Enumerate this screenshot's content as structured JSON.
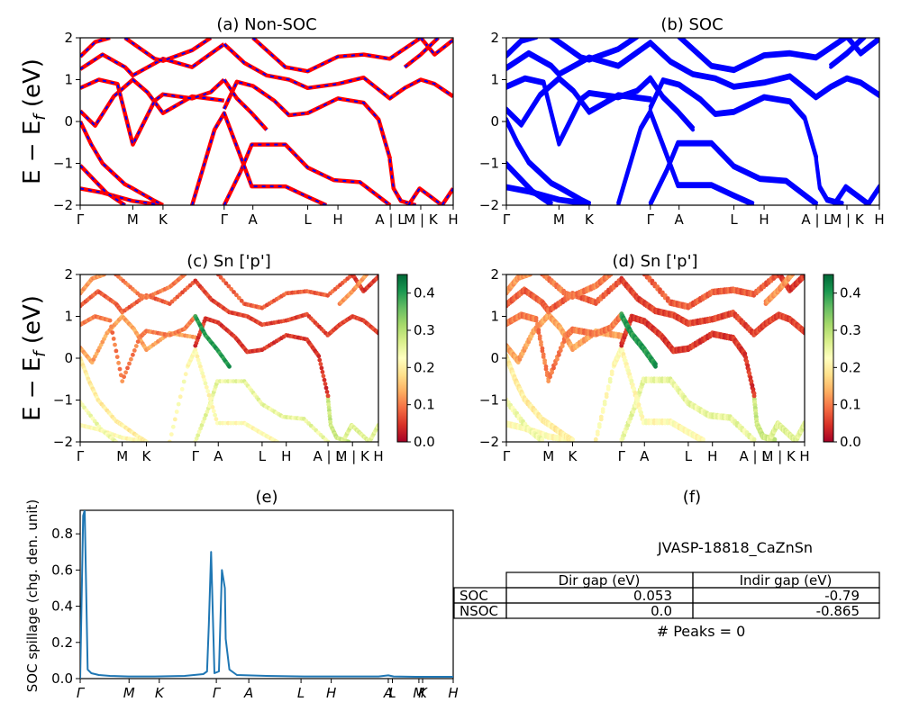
{
  "colors": {
    "nonsoc_line": "#ff0000",
    "nonsoc_dash": "#0000ff",
    "soc_line": "#0000ff",
    "spillage_line": "#1f77b4",
    "colormap": [
      "#a50026",
      "#d73027",
      "#f46d43",
      "#fdae61",
      "#fee08b",
      "#ffffbf",
      "#d9ef8b",
      "#a6d96a",
      "#66bd63",
      "#1a9850",
      "#006837"
    ]
  },
  "chart_data": [
    {
      "id": "a",
      "type": "line",
      "title": "(a) Non-SOC",
      "ylabel": "E − E_f (eV)",
      "ylim": [
        -2,
        2
      ],
      "yticks": [
        "2",
        "1",
        "0",
        "−1",
        "−2"
      ],
      "kpath": [
        "Γ",
        "M",
        "K",
        "Γ",
        "A",
        "L",
        "H",
        "A | L",
        "M | K",
        "H"
      ],
      "kpath_positions": [
        0,
        0.141,
        0.222,
        0.386,
        0.463,
        0.61,
        0.691,
        0.831,
        0.913,
        1
      ],
      "bands": [
        [
          [
            0,
            -1.6
          ],
          [
            0.06,
            -1.7
          ],
          [
            0.141,
            -1.9
          ],
          [
            0.222,
            -2.0
          ]
        ],
        [
          [
            0,
            -1.05
          ],
          [
            0.07,
            -1.7
          ],
          [
            0.12,
            -2.0
          ]
        ],
        [
          [
            0.386,
            -2.0
          ],
          [
            0.43,
            -1.2
          ],
          [
            0.46,
            -0.55
          ],
          [
            0.55,
            -0.55
          ],
          [
            0.61,
            -1.1
          ],
          [
            0.68,
            -1.4
          ],
          [
            0.75,
            -1.45
          ],
          [
            0.831,
            -2.0
          ]
        ],
        [
          [
            0.3,
            -2.0
          ],
          [
            0.36,
            -0.2
          ],
          [
            0.386,
            0.2
          ],
          [
            0.42,
            -0.6
          ],
          [
            0.46,
            -1.55
          ],
          [
            0.55,
            -1.55
          ],
          [
            0.61,
            -1.8
          ],
          [
            0.66,
            -2.0
          ]
        ],
        [
          [
            0.83,
            -0.9
          ],
          [
            0.84,
            -1.6
          ],
          [
            0.86,
            -1.9
          ],
          [
            0.9,
            -2.0
          ]
        ],
        [
          [
            0.88,
            -2.0
          ],
          [
            0.91,
            -1.6
          ],
          [
            0.94,
            -1.8
          ],
          [
            0.97,
            -2.0
          ],
          [
            1,
            -1.6
          ]
        ],
        [
          [
            0,
            0.25
          ],
          [
            0.04,
            -0.1
          ],
          [
            0.09,
            0.6
          ],
          [
            0.141,
            1.0
          ],
          [
            0.18,
            0.7
          ],
          [
            0.222,
            0.2
          ],
          [
            0.3,
            0.6
          ],
          [
            0.386,
            0.5
          ]
        ],
        [
          [
            0,
            0.0
          ],
          [
            0.03,
            -0.55
          ],
          [
            0.06,
            -1.0
          ],
          [
            0.12,
            -1.5
          ],
          [
            0.141,
            -1.6
          ],
          [
            0.2,
            -1.9
          ],
          [
            0.222,
            -2.0
          ]
        ],
        [
          [
            0.386,
            0.3
          ],
          [
            0.42,
            0.95
          ],
          [
            0.463,
            0.85
          ],
          [
            0.52,
            0.5
          ],
          [
            0.56,
            0.15
          ],
          [
            0.61,
            0.2
          ],
          [
            0.691,
            0.55
          ],
          [
            0.76,
            0.45
          ],
          [
            0.8,
            0.05
          ],
          [
            0.831,
            -0.9
          ]
        ],
        [
          [
            0,
            0.8
          ],
          [
            0.05,
            1.0
          ],
          [
            0.1,
            0.9
          ],
          [
            0.141,
            -0.55
          ],
          [
            0.2,
            0.5
          ],
          [
            0.222,
            0.65
          ],
          [
            0.3,
            0.55
          ],
          [
            0.35,
            0.7
          ],
          [
            0.386,
            1.0
          ]
        ],
        [
          [
            0.386,
            1.0
          ],
          [
            0.42,
            0.55
          ],
          [
            0.46,
            0.2
          ],
          [
            0.5,
            -0.2
          ]
        ],
        [
          [
            0,
            1.25
          ],
          [
            0.06,
            1.6
          ],
          [
            0.12,
            1.3
          ],
          [
            0.141,
            1.1
          ],
          [
            0.222,
            1.5
          ],
          [
            0.3,
            1.3
          ],
          [
            0.386,
            1.85
          ]
        ],
        [
          [
            0.386,
            1.85
          ],
          [
            0.44,
            1.4
          ],
          [
            0.5,
            1.1
          ],
          [
            0.56,
            1.0
          ],
          [
            0.61,
            0.8
          ],
          [
            0.691,
            0.9
          ],
          [
            0.76,
            1.05
          ],
          [
            0.83,
            0.55
          ],
          [
            0.87,
            0.8
          ],
          [
            0.913,
            1.0
          ],
          [
            0.95,
            0.9
          ],
          [
            1,
            0.6
          ]
        ],
        [
          [
            0,
            1.55
          ],
          [
            0.04,
            1.9
          ],
          [
            0.08,
            2.0
          ]
        ],
        [
          [
            0.12,
            2.0
          ],
          [
            0.2,
            1.5
          ],
          [
            0.222,
            1.45
          ],
          [
            0.3,
            1.7
          ],
          [
            0.35,
            2.0
          ]
        ],
        [
          [
            0.463,
            2.0
          ],
          [
            0.55,
            1.3
          ],
          [
            0.61,
            1.2
          ],
          [
            0.691,
            1.55
          ],
          [
            0.76,
            1.6
          ],
          [
            0.83,
            1.5
          ],
          [
            0.913,
            2.0
          ]
        ],
        [
          [
            0.913,
            2.0
          ],
          [
            0.95,
            1.6
          ],
          [
            1,
            1.95
          ]
        ],
        [
          [
            0.87,
            1.3
          ],
          [
            0.913,
            1.6
          ],
          [
            0.96,
            2.0
          ]
        ]
      ]
    },
    {
      "id": "b",
      "type": "line",
      "title": "(b) SOC",
      "ylim": [
        -2,
        2
      ],
      "yticks": [
        "2",
        "1",
        "0",
        "−1",
        "−2"
      ],
      "kpath": [
        "Γ",
        "M",
        "K",
        "Γ",
        "A",
        "L",
        "H",
        "A | L",
        "M | K",
        "H"
      ],
      "kpath_positions": [
        0,
        0.141,
        0.222,
        0.386,
        0.463,
        0.61,
        0.691,
        0.831,
        0.913,
        1
      ],
      "bands": [
        [
          [
            0,
            -1.6
          ],
          [
            0.06,
            -1.7
          ],
          [
            0.141,
            -1.9
          ],
          [
            0.222,
            -2.0
          ]
        ],
        [
          [
            0,
            -1.05
          ],
          [
            0.07,
            -1.7
          ],
          [
            0.12,
            -2.0
          ]
        ],
        [
          [
            0.386,
            -2.0
          ],
          [
            0.43,
            -1.2
          ],
          [
            0.46,
            -0.55
          ],
          [
            0.55,
            -0.55
          ],
          [
            0.61,
            -1.1
          ],
          [
            0.68,
            -1.4
          ],
          [
            0.75,
            -1.45
          ],
          [
            0.831,
            -2.0
          ]
        ],
        [
          [
            0.3,
            -2.0
          ],
          [
            0.36,
            -0.2
          ],
          [
            0.386,
            0.2
          ],
          [
            0.42,
            -0.6
          ],
          [
            0.46,
            -1.55
          ],
          [
            0.55,
            -1.55
          ],
          [
            0.61,
            -1.8
          ],
          [
            0.66,
            -2.0
          ]
        ],
        [
          [
            0.83,
            -0.9
          ],
          [
            0.84,
            -1.6
          ],
          [
            0.86,
            -1.9
          ],
          [
            0.9,
            -2.0
          ]
        ],
        [
          [
            0.88,
            -2.0
          ],
          [
            0.91,
            -1.6
          ],
          [
            0.94,
            -1.8
          ],
          [
            0.97,
            -2.0
          ],
          [
            1,
            -1.6
          ]
        ],
        [
          [
            0,
            0.25
          ],
          [
            0.04,
            -0.1
          ],
          [
            0.09,
            0.6
          ],
          [
            0.141,
            1.0
          ],
          [
            0.18,
            0.7
          ],
          [
            0.222,
            0.2
          ],
          [
            0.3,
            0.6
          ],
          [
            0.386,
            0.5
          ]
        ],
        [
          [
            0,
            0.0
          ],
          [
            0.03,
            -0.55
          ],
          [
            0.06,
            -1.0
          ],
          [
            0.12,
            -1.5
          ],
          [
            0.141,
            -1.6
          ],
          [
            0.2,
            -1.9
          ],
          [
            0.222,
            -2.0
          ]
        ],
        [
          [
            0.386,
            0.3
          ],
          [
            0.42,
            0.95
          ],
          [
            0.463,
            0.85
          ],
          [
            0.52,
            0.5
          ],
          [
            0.56,
            0.15
          ],
          [
            0.61,
            0.2
          ],
          [
            0.691,
            0.55
          ],
          [
            0.76,
            0.45
          ],
          [
            0.8,
            0.05
          ],
          [
            0.831,
            -0.9
          ]
        ],
        [
          [
            0,
            0.8
          ],
          [
            0.05,
            1.0
          ],
          [
            0.1,
            0.9
          ],
          [
            0.141,
            -0.55
          ],
          [
            0.2,
            0.5
          ],
          [
            0.222,
            0.65
          ],
          [
            0.3,
            0.55
          ],
          [
            0.35,
            0.7
          ],
          [
            0.386,
            1.0
          ]
        ],
        [
          [
            0.386,
            1.0
          ],
          [
            0.42,
            0.55
          ],
          [
            0.46,
            0.2
          ],
          [
            0.5,
            -0.2
          ]
        ],
        [
          [
            0,
            1.25
          ],
          [
            0.06,
            1.6
          ],
          [
            0.12,
            1.3
          ],
          [
            0.141,
            1.1
          ],
          [
            0.222,
            1.5
          ],
          [
            0.3,
            1.3
          ],
          [
            0.386,
            1.85
          ]
        ],
        [
          [
            0.386,
            1.85
          ],
          [
            0.44,
            1.4
          ],
          [
            0.5,
            1.1
          ],
          [
            0.56,
            1.0
          ],
          [
            0.61,
            0.8
          ],
          [
            0.691,
            0.9
          ],
          [
            0.76,
            1.05
          ],
          [
            0.83,
            0.55
          ],
          [
            0.87,
            0.8
          ],
          [
            0.913,
            1.0
          ],
          [
            0.95,
            0.9
          ],
          [
            1,
            0.6
          ]
        ],
        [
          [
            0,
            1.55
          ],
          [
            0.04,
            1.9
          ],
          [
            0.08,
            2.0
          ]
        ],
        [
          [
            0.12,
            2.0
          ],
          [
            0.2,
            1.5
          ],
          [
            0.222,
            1.45
          ],
          [
            0.3,
            1.7
          ],
          [
            0.35,
            2.0
          ]
        ],
        [
          [
            0.463,
            2.0
          ],
          [
            0.55,
            1.3
          ],
          [
            0.61,
            1.2
          ],
          [
            0.691,
            1.55
          ],
          [
            0.76,
            1.6
          ],
          [
            0.83,
            1.5
          ],
          [
            0.913,
            2.0
          ]
        ],
        [
          [
            0.913,
            2.0
          ],
          [
            0.95,
            1.6
          ],
          [
            1,
            1.95
          ]
        ],
        [
          [
            0.87,
            1.3
          ],
          [
            0.913,
            1.6
          ],
          [
            0.96,
            2.0
          ]
        ]
      ]
    },
    {
      "id": "c",
      "type": "scatter",
      "title": "(c)  Sn ['p']",
      "ylabel": "E − E_f (eV)",
      "ylim": [
        -2,
        2
      ],
      "yticks": [
        "2",
        "1",
        "0",
        "−1",
        "−2"
      ],
      "kpath": [
        "Γ",
        "M",
        "K",
        "Γ",
        "A",
        "L",
        "H",
        "A | L",
        "M | K",
        "H"
      ],
      "kpath_positions": [
        0,
        0.141,
        0.222,
        0.386,
        0.463,
        0.61,
        0.691,
        0.831,
        0.913,
        1
      ],
      "colorbar": {
        "min": 0.0,
        "max": 0.45,
        "ticks": [
          "0.0",
          "0.1",
          "0.2",
          "0.3",
          "0.4"
        ],
        "tick_values": [
          0,
          0.1,
          0.2,
          0.3,
          0.4
        ]
      },
      "band_weights": [
        0.22,
        0.24,
        0.25,
        0.22,
        0.28,
        0.26,
        0.13,
        0.2,
        0.05,
        0.1,
        0.4,
        0.08,
        0.06,
        0.12,
        0.1,
        0.08,
        0.05,
        0.12
      ]
    },
    {
      "id": "d",
      "type": "scatter",
      "title": "(d) Sn ['p']",
      "ylim": [
        -2,
        2
      ],
      "yticks": [
        "2",
        "1",
        "0",
        "−1",
        "−2"
      ],
      "kpath": [
        "Γ",
        "M",
        "K",
        "Γ",
        "A",
        "L",
        "H",
        "A | L",
        "M | K",
        "H"
      ],
      "kpath_positions": [
        0,
        0.141,
        0.222,
        0.386,
        0.463,
        0.61,
        0.691,
        0.831,
        0.913,
        1
      ],
      "colorbar": {
        "min": 0.0,
        "max": 0.45,
        "ticks": [
          "0.0",
          "0.1",
          "0.2",
          "0.3",
          "0.4"
        ],
        "tick_values": [
          0,
          0.1,
          0.2,
          0.3,
          0.4
        ]
      },
      "band_weights": [
        0.22,
        0.24,
        0.25,
        0.22,
        0.28,
        0.26,
        0.13,
        0.2,
        0.05,
        0.1,
        0.4,
        0.08,
        0.06,
        0.12,
        0.1,
        0.08,
        0.05,
        0.12
      ]
    },
    {
      "id": "e",
      "type": "line",
      "title": "(e)",
      "ylabel": "SOC spillage (chg. den. unit)",
      "ylim": [
        0,
        0.93
      ],
      "yticks": [
        "0.0",
        "0.2",
        "0.4",
        "0.6",
        "0.8"
      ],
      "ytick_values": [
        0,
        0.2,
        0.4,
        0.6,
        0.8
      ],
      "kpath": [
        "Γ",
        "M",
        "K",
        "Γ",
        "A",
        "L",
        "H",
        "A",
        "L",
        "M",
        "K",
        "H"
      ],
      "kpath_positions": [
        0,
        0.131,
        0.212,
        0.365,
        0.452,
        0.592,
        0.673,
        0.826,
        0.837,
        0.908,
        0.918,
        1
      ],
      "x": [
        0,
        0.008,
        0.012,
        0.02,
        0.03,
        0.05,
        0.08,
        0.13,
        0.2,
        0.28,
        0.33,
        0.34,
        0.345,
        0.351,
        0.36,
        0.372,
        0.38,
        0.388,
        0.39,
        0.4,
        0.42,
        0.45,
        0.5,
        0.6,
        0.7,
        0.8,
        0.826,
        0.84,
        0.9,
        1
      ],
      "values": [
        0.0,
        0.9,
        0.93,
        0.05,
        0.03,
        0.02,
        0.015,
        0.012,
        0.012,
        0.015,
        0.025,
        0.04,
        0.3,
        0.7,
        0.03,
        0.04,
        0.6,
        0.5,
        0.22,
        0.05,
        0.02,
        0.018,
        0.015,
        0.012,
        0.012,
        0.012,
        0.018,
        0.012,
        0.01,
        0.01
      ]
    },
    {
      "id": "f",
      "type": "table",
      "title": "(f)",
      "subtitle": "JVASP-18818_CaZnSn",
      "columns": [
        "Dir gap (eV)",
        "Indir gap (eV)"
      ],
      "rows": [
        {
          "label": "SOC",
          "values": [
            "0.053",
            "-0.79"
          ]
        },
        {
          "label": "NSOC",
          "values": [
            "0.0",
            "-0.865"
          ]
        }
      ],
      "footer": "# Peaks = 0"
    }
  ]
}
